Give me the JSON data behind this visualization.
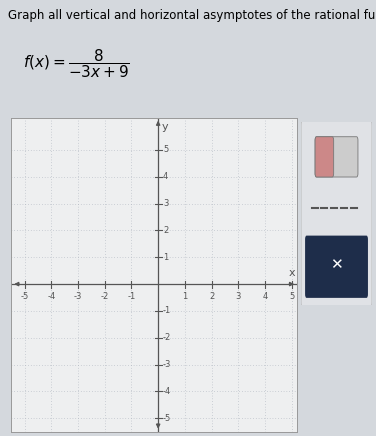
{
  "title_line1": "Graph all vertical and horizontal asymptotes of the rational functior",
  "xlim": [
    -5.5,
    5.2
  ],
  "ylim": [
    -5.5,
    6.2
  ],
  "xticks": [
    -5,
    -4,
    -3,
    -2,
    -1,
    1,
    2,
    3,
    4,
    5
  ],
  "yticks": [
    -5,
    -4,
    -3,
    -2,
    -1,
    1,
    2,
    3,
    4,
    5
  ],
  "grid_color": "#aab0bb",
  "axis_color": "#555555",
  "plot_bg": "#eeeff0",
  "outer_bg": "#d4d8dd",
  "white_bg": "#f5f5f5",
  "toolbar_bg": "#e0e2e6",
  "toolbar_dark": "#1e2d4a",
  "title_fontsize": 8.5,
  "formula_fontsize": 11,
  "tick_fontsize": 6.0,
  "axis_label_fontsize": 8
}
